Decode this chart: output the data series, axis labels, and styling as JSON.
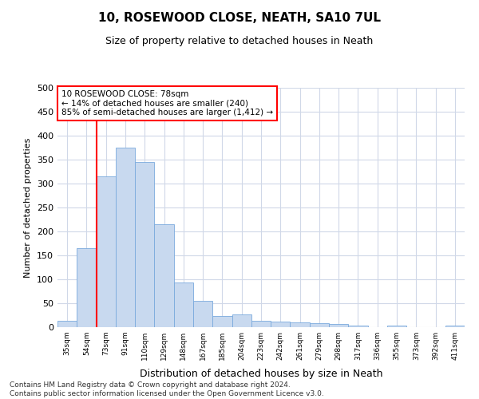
{
  "title": "10, ROSEWOOD CLOSE, NEATH, SA10 7UL",
  "subtitle": "Size of property relative to detached houses in Neath",
  "xlabel": "Distribution of detached houses by size in Neath",
  "ylabel": "Number of detached properties",
  "bar_color": "#c8d9ef",
  "bar_edge_color": "#7aaadd",
  "categories": [
    "35sqm",
    "54sqm",
    "73sqm",
    "91sqm",
    "110sqm",
    "129sqm",
    "148sqm",
    "167sqm",
    "185sqm",
    "204sqm",
    "223sqm",
    "242sqm",
    "261sqm",
    "279sqm",
    "298sqm",
    "317sqm",
    "336sqm",
    "355sqm",
    "373sqm",
    "392sqm",
    "411sqm"
  ],
  "values": [
    13,
    165,
    315,
    375,
    345,
    215,
    93,
    55,
    23,
    27,
    13,
    12,
    10,
    8,
    6,
    4,
    0,
    3,
    0,
    0,
    3
  ],
  "ylim": [
    0,
    500
  ],
  "yticks": [
    0,
    50,
    100,
    150,
    200,
    250,
    300,
    350,
    400,
    450,
    500
  ],
  "vline_x": 1.5,
  "annotation_line1": "10 ROSEWOOD CLOSE: 78sqm",
  "annotation_line2": "← 14% of detached houses are smaller (240)",
  "annotation_line3": "85% of semi-detached houses are larger (1,412) →",
  "annotation_box_color": "white",
  "annotation_box_edgecolor": "red",
  "vline_color": "red",
  "footer_line1": "Contains HM Land Registry data © Crown copyright and database right 2024.",
  "footer_line2": "Contains public sector information licensed under the Open Government Licence v3.0.",
  "background_color": "white",
  "grid_color": "#d0d8e8"
}
